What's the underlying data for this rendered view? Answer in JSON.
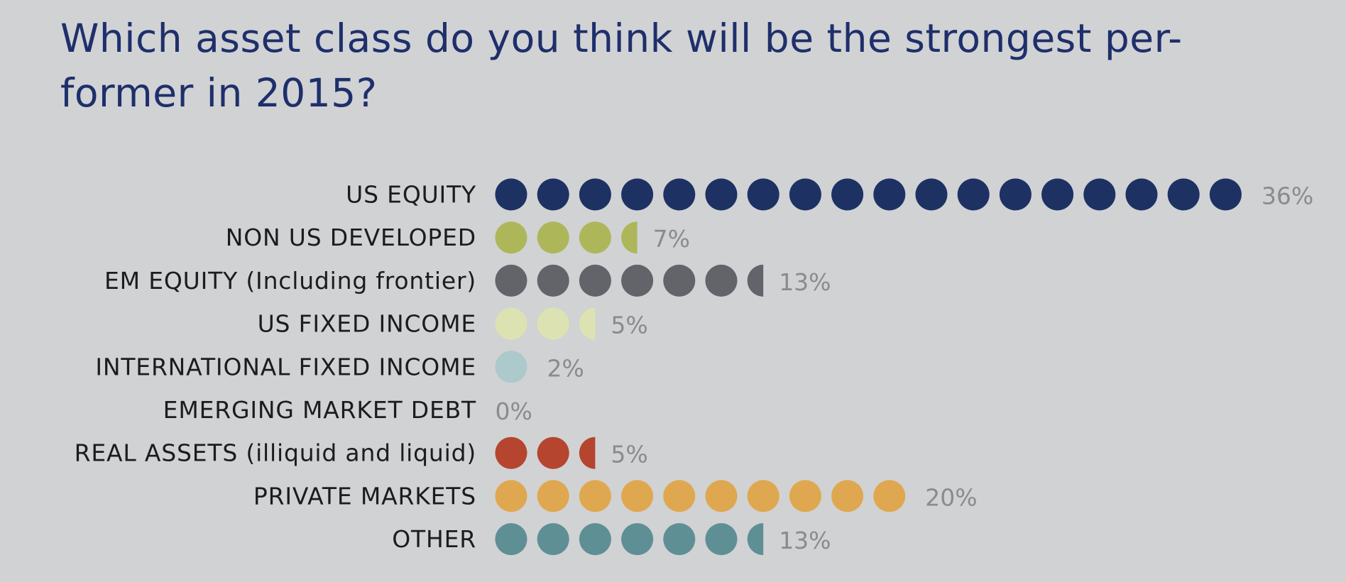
{
  "chart_data": {
    "type": "bar",
    "title": "Which asset class do you think will be the strongest per-former in 2015?",
    "title_lines": [
      "Which asset class do you think will be the strongest per-",
      "former in 2015?"
    ],
    "unit_percent_per_dot": 2,
    "categories": [
      "US EQUITY",
      "NON US DEVELOPED",
      "EM EQUITY (Including frontier)",
      "US FIXED INCOME",
      "INTERNATIONAL FIXED INCOME",
      "EMERGING MARKET DEBT",
      "REAL ASSETS (illiquid and liquid)",
      "PRIVATE MARKETS",
      "OTHER"
    ],
    "values": [
      36,
      7,
      13,
      5,
      2,
      0,
      5,
      20,
      13
    ],
    "value_labels": [
      "36%",
      "7%",
      "13%",
      "5%",
      "2%",
      "0%",
      "5%",
      "20%",
      "13%"
    ],
    "colors": [
      "#1e3163",
      "#adb75a",
      "#626469",
      "#dde2b2",
      "#acc9cc",
      "#8c8d90",
      "#b5452f",
      "#dfa850",
      "#5e8f95"
    ],
    "xlabel": "",
    "ylabel": ""
  }
}
